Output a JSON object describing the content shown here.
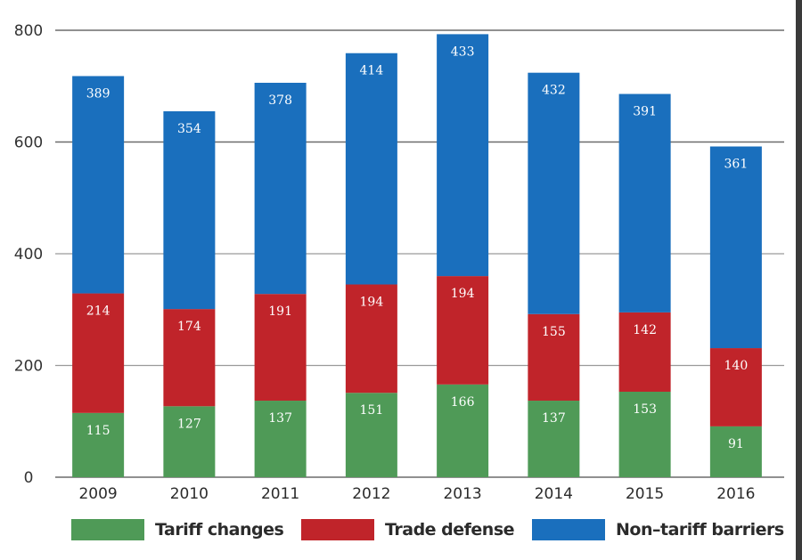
{
  "chart_data": {
    "type": "bar",
    "stacked": true,
    "title": "",
    "xlabel": "",
    "ylabel": "",
    "ylim": [
      0,
      800
    ],
    "yticks": [
      0,
      200,
      400,
      600,
      800
    ],
    "grid": true,
    "categories": [
      "2009",
      "2010",
      "2011",
      "2012",
      "2013",
      "2014",
      "2015",
      "2016"
    ],
    "series": [
      {
        "name": "Tariff changes",
        "color": "#4f9a57",
        "values": [
          115,
          127,
          137,
          151,
          166,
          137,
          153,
          91
        ]
      },
      {
        "name": "Trade defense",
        "color": "#c0242a",
        "values": [
          214,
          174,
          191,
          194,
          194,
          155,
          142,
          140
        ]
      },
      {
        "name": "Non-tariff barriers",
        "color": "#1a6fbd",
        "values": [
          389,
          354,
          378,
          414,
          433,
          432,
          391,
          361
        ]
      }
    ],
    "legend": {
      "position": "bottom",
      "entries": [
        "Tariff changes",
        "Trade defense",
        "Non–tariff barriers"
      ]
    },
    "data_labels": true
  }
}
